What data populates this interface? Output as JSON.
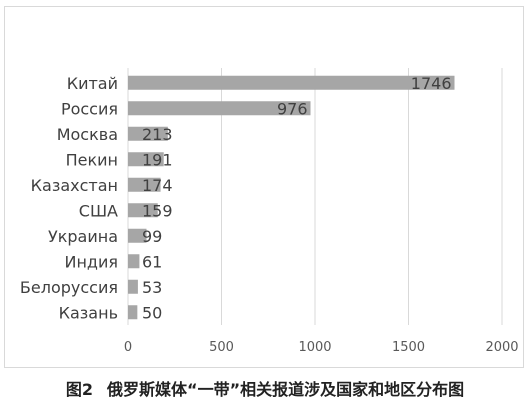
{
  "chart_data": {
    "type": "bar",
    "orientation": "horizontal",
    "categories": [
      "Китай",
      "Россия",
      "Москва",
      "Пекин",
      "Казахстан",
      "США",
      "Украина",
      "Индия",
      "Белоруссия",
      "Казань"
    ],
    "values": [
      1746,
      976,
      213,
      191,
      174,
      159,
      99,
      61,
      53,
      50
    ],
    "xlim": [
      0,
      2000
    ],
    "xticks": [
      "0",
      "500",
      "1000",
      "1500",
      "2000"
    ],
    "bar_color": "#a6a6a6",
    "grid": true,
    "grid_color": "#d9d9d9",
    "legend": "none",
    "data_labels": true
  },
  "caption": {
    "figure_number": "图2",
    "title": "俄罗斯媒体“一带”相关报道涉及国家和地区分布图"
  }
}
